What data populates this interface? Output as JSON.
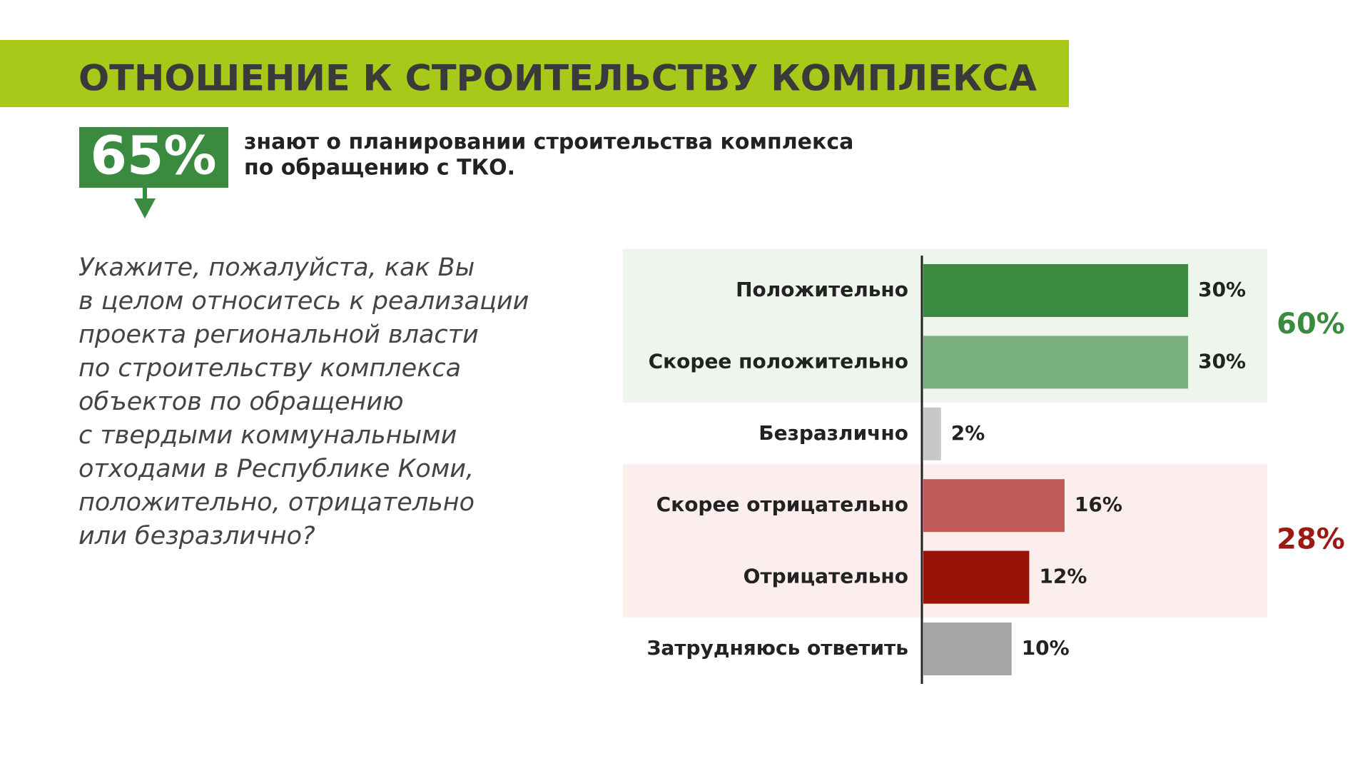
{
  "header": {
    "title": "ОТНОШЕНИЕ К СТРОИТЕЛЬСТВУ КОМПЛЕКСА"
  },
  "highlight": {
    "figure": "65%",
    "lines": [
      "знают о планировании строительства комплекса",
      "по обращению с ТКО."
    ]
  },
  "question": {
    "lines": [
      "Укажите, пожалуйста, как Вы",
      "в целом относитесь к реализации",
      "проекта региональной власти",
      "по строительству комплекса",
      "объектов по обращению",
      "с твердыми коммунальными",
      "отходами в Республике Коми,",
      "положительно, отрицательно",
      "или безразлично?"
    ]
  },
  "chart_data": {
    "type": "bar",
    "orientation": "horizontal",
    "categories": [
      "Положительно",
      "Скорее положительно",
      "Безразлично",
      "Скорее отрицательно",
      "Отрицательно",
      "Затрудняюсь ответить"
    ],
    "values": [
      30,
      30,
      2,
      16,
      12,
      10
    ],
    "value_labels": [
      "30%",
      "30%",
      "2%",
      "16%",
      "12%",
      "10%"
    ],
    "colors": [
      "#3a8a3f",
      "#7ab17c",
      "#c8c8c8",
      "#c05b58",
      "#9b1208",
      "#a5a5a5"
    ],
    "groups": [
      {
        "value": 60,
        "label": "60%",
        "color": "#3a8a3f",
        "band_color": "#eef5ec"
      },
      {
        "value": 28,
        "label": "28%",
        "color": "#9b1a14",
        "band_color": "#fbeeed"
      }
    ]
  }
}
